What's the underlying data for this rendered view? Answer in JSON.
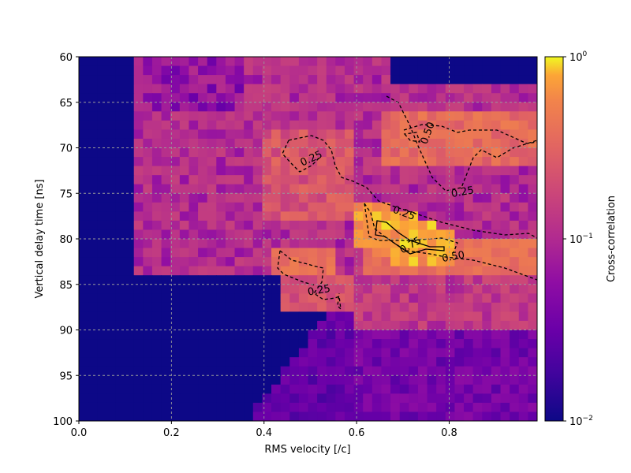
{
  "chart_data": {
    "type": "heatmap",
    "title": "",
    "xlabel": "RMS velocity [/c]",
    "ylabel": "Vertical delay time [ns]",
    "xlim": [
      0.0,
      0.99
    ],
    "ylim": [
      100,
      60
    ],
    "y_inverted": true,
    "x_ticks": [
      "0.0",
      "0.2",
      "0.4",
      "0.6",
      "0.8"
    ],
    "y_ticks": [
      "60",
      "65",
      "70",
      "75",
      "80",
      "85",
      "90",
      "95",
      "100"
    ],
    "grid": true,
    "grid_style": "dashed gray",
    "colormap": "plasma",
    "color_scale": "log",
    "colorbar": {
      "label": "Cross-correlation",
      "range": [
        0.01,
        1
      ],
      "ticks": [
        {
          "base": "10",
          "exp": "0",
          "value": 1
        },
        {
          "base": "10",
          "exp": "−1",
          "value": 0.1
        },
        {
          "base": "10",
          "exp": "−2",
          "value": 0.01
        }
      ]
    },
    "grid_cells": {
      "nx": 50,
      "ny": 40,
      "x_step": 0.0198,
      "y_step": 1.0,
      "description_regions": [
        {
          "region": "x<0.12, all y",
          "value": 0.01
        },
        {
          "region": "y>84 and x<0.6",
          "value": 0.01
        },
        {
          "region": "y>90 and x>0.6",
          "value": 0.03
        },
        {
          "region": "ridge x 0.6-0.8, y 77-82",
          "value": 0.9
        }
      ]
    },
    "contour_labels": [
      {
        "text": "0.50",
        "x": 0.76,
        "y": 68.5
      },
      {
        "text": "0.25",
        "x": 0.505,
        "y": 71.5
      },
      {
        "text": "0.25",
        "x": 0.83,
        "y": 75.2
      },
      {
        "text": "0.25",
        "x": 0.7,
        "y": 77.5
      },
      {
        "text": "0.75",
        "x": 0.72,
        "y": 81.0
      },
      {
        "text": "0.50",
        "x": 0.81,
        "y": 82.3
      },
      {
        "text": "0.25",
        "x": 0.52,
        "y": 86.0
      }
    ]
  }
}
